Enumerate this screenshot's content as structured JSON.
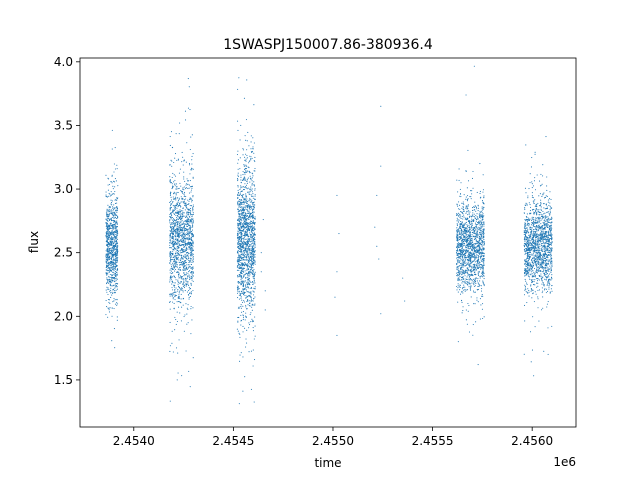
{
  "chart_data": {
    "type": "scatter",
    "title": "1SWASPJ150007.86-380936.4",
    "xlabel": "time",
    "ylabel": "flux",
    "x_offset_label": "1e6",
    "xlim": [
      2.45373,
      2.45622
    ],
    "ylim": [
      1.13,
      4.03
    ],
    "x_ticks": [
      2.454,
      2.4545,
      2.455,
      2.4555,
      2.456
    ],
    "x_tick_labels": [
      "2.4540",
      "2.4545",
      "2.4550",
      "2.4555",
      "2.4560"
    ],
    "y_ticks": [
      1.5,
      2.0,
      2.5,
      3.0,
      3.5,
      4.0
    ],
    "y_tick_labels": [
      "1.5",
      "2.0",
      "2.5",
      "3.0",
      "3.5",
      "4.0"
    ],
    "grid": false,
    "legend": "none",
    "point_color": "#1f77b4",
    "series": [
      {
        "clusters": [
          {
            "x_range": [
              2.45386,
              2.45392
            ],
            "y_center": 2.55,
            "y_spread": 0.2,
            "n": 900
          },
          {
            "x_range": [
              2.45418,
              2.4543
            ],
            "y_center": 2.6,
            "y_spread": 0.25,
            "n": 1400
          },
          {
            "x_range": [
              2.45452,
              2.45461
            ],
            "y_center": 2.6,
            "y_spread": 0.28,
            "n": 1500
          },
          {
            "x_range": [
              2.45562,
              2.45576
            ],
            "y_center": 2.55,
            "y_spread": 0.17,
            "n": 1500
          },
          {
            "x_range": [
              2.45596,
              2.4561
            ],
            "y_center": 2.55,
            "y_spread": 0.17,
            "n": 1500
          }
        ],
        "sparse_points": [
          [
            2.45464,
            2.5
          ],
          [
            2.45465,
            2.76
          ],
          [
            2.45466,
            2.2
          ],
          [
            2.45466,
            2.05
          ],
          [
            2.45464,
            2.35
          ],
          [
            2.45502,
            2.95
          ],
          [
            2.45502,
            2.35
          ],
          [
            2.45502,
            1.85
          ],
          [
            2.45503,
            2.65
          ],
          [
            2.45501,
            2.15
          ],
          [
            2.45522,
            2.95
          ],
          [
            2.45522,
            2.55
          ],
          [
            2.45523,
            2.45
          ],
          [
            2.45521,
            2.7
          ],
          [
            2.45524,
            3.65
          ],
          [
            2.45524,
            3.18
          ],
          [
            2.45524,
            2.02
          ],
          [
            2.45535,
            2.3
          ],
          [
            2.45536,
            2.12
          ]
        ]
      }
    ]
  }
}
